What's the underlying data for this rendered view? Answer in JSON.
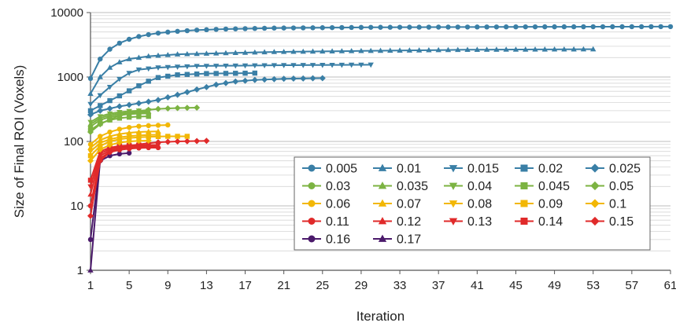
{
  "chart_data": {
    "type": "line",
    "xlabel": "Iteration",
    "ylabel": "Size of Final ROI (Voxels)",
    "yscale": "log",
    "ylim": [
      1,
      10000
    ],
    "xlim": [
      1,
      61
    ],
    "x_ticks": [
      1,
      5,
      9,
      13,
      17,
      21,
      25,
      29,
      33,
      37,
      41,
      45,
      49,
      53,
      57,
      61
    ],
    "y_ticks": [
      1,
      10,
      100,
      1000,
      10000
    ],
    "y_tick_labels": [
      "1",
      "10",
      "100",
      "1000",
      "10000"
    ],
    "grid": "horizontal minor gridlines on",
    "legend_position": "lower-right, inside plot, 5 columns",
    "series": [
      {
        "name": "0.005",
        "color": "#3a7fa6",
        "marker": "circle",
        "start": 1,
        "end": 61,
        "points": [
          [
            1,
            950
          ],
          [
            2,
            1900
          ],
          [
            3,
            2700
          ],
          [
            4,
            3350
          ],
          [
            5,
            3850
          ],
          [
            6,
            4250
          ],
          [
            7,
            4550
          ],
          [
            8,
            4800
          ],
          [
            9,
            4980
          ],
          [
            10,
            5120
          ],
          [
            12,
            5350
          ],
          [
            15,
            5550
          ],
          [
            20,
            5750
          ],
          [
            30,
            5900
          ],
          [
            45,
            6000
          ],
          [
            61,
            6050
          ]
        ]
      },
      {
        "name": "0.01",
        "color": "#3a7fa6",
        "marker": "triangle-up",
        "start": 1,
        "end": 53,
        "points": [
          [
            1,
            550
          ],
          [
            2,
            1000
          ],
          [
            3,
            1400
          ],
          [
            4,
            1700
          ],
          [
            5,
            1900
          ],
          [
            7,
            2100
          ],
          [
            10,
            2250
          ],
          [
            15,
            2350
          ],
          [
            20,
            2450
          ],
          [
            30,
            2550
          ],
          [
            40,
            2650
          ],
          [
            53,
            2700
          ]
        ]
      },
      {
        "name": "0.015",
        "color": "#3a7fa6",
        "marker": "triangle-down",
        "start": 1,
        "end": 30,
        "points": [
          [
            1,
            380
          ],
          [
            2,
            520
          ],
          [
            3,
            700
          ],
          [
            4,
            930
          ],
          [
            5,
            1150
          ],
          [
            6,
            1300
          ],
          [
            8,
            1400
          ],
          [
            12,
            1480
          ],
          [
            20,
            1520
          ],
          [
            30,
            1550
          ]
        ]
      },
      {
        "name": "0.02",
        "color": "#3a7fa6",
        "marker": "square",
        "start": 1,
        "end": 18,
        "points": [
          [
            1,
            300
          ],
          [
            2,
            360
          ],
          [
            3,
            430
          ],
          [
            4,
            510
          ],
          [
            5,
            610
          ],
          [
            6,
            730
          ],
          [
            7,
            860
          ],
          [
            8,
            980
          ],
          [
            10,
            1080
          ],
          [
            13,
            1130
          ],
          [
            18,
            1150
          ]
        ]
      },
      {
        "name": "0.025",
        "color": "#3a7fa6",
        "marker": "diamond",
        "start": 1,
        "end": 25,
        "points": [
          [
            1,
            260
          ],
          [
            2,
            300
          ],
          [
            4,
            350
          ],
          [
            6,
            390
          ],
          [
            8,
            440
          ],
          [
            10,
            530
          ],
          [
            12,
            640
          ],
          [
            14,
            760
          ],
          [
            16,
            850
          ],
          [
            18,
            900
          ],
          [
            21,
            940
          ],
          [
            25,
            960
          ]
        ]
      },
      {
        "name": "0.03",
        "color": "#7cb342",
        "marker": "circle",
        "start": 1,
        "end": 7,
        "points": [
          [
            1,
            170
          ],
          [
            2,
            215
          ],
          [
            3,
            240
          ],
          [
            4,
            255
          ],
          [
            5,
            265
          ],
          [
            6,
            270
          ],
          [
            7,
            272
          ]
        ]
      },
      {
        "name": "0.035",
        "color": "#7cb342",
        "marker": "triangle-up",
        "start": 1,
        "end": 7,
        "points": [
          [
            1,
            185
          ],
          [
            2,
            230
          ],
          [
            3,
            255
          ],
          [
            4,
            270
          ],
          [
            5,
            280
          ],
          [
            6,
            285
          ],
          [
            7,
            288
          ]
        ]
      },
      {
        "name": "0.04",
        "color": "#7cb342",
        "marker": "triangle-down",
        "start": 1,
        "end": 7,
        "points": [
          [
            1,
            200
          ],
          [
            2,
            245
          ],
          [
            3,
            270
          ],
          [
            4,
            285
          ],
          [
            5,
            295
          ],
          [
            6,
            300
          ],
          [
            7,
            302
          ]
        ]
      },
      {
        "name": "0.045",
        "color": "#7cb342",
        "marker": "square",
        "start": 1,
        "end": 7,
        "points": [
          [
            1,
            150
          ],
          [
            2,
            190
          ],
          [
            3,
            215
          ],
          [
            4,
            230
          ],
          [
            5,
            238
          ],
          [
            6,
            243
          ],
          [
            7,
            245
          ]
        ]
      },
      {
        "name": "0.05",
        "color": "#7cb342",
        "marker": "diamond",
        "start": 1,
        "end": 12,
        "points": [
          [
            1,
            140
          ],
          [
            2,
            185
          ],
          [
            3,
            220
          ],
          [
            4,
            250
          ],
          [
            5,
            275
          ],
          [
            6,
            295
          ],
          [
            7,
            310
          ],
          [
            8,
            320
          ],
          [
            10,
            330
          ],
          [
            12,
            335
          ]
        ]
      },
      {
        "name": "0.06",
        "color": "#f2b705",
        "marker": "circle",
        "start": 1,
        "end": 9,
        "points": [
          [
            1,
            90
          ],
          [
            2,
            120
          ],
          [
            3,
            140
          ],
          [
            4,
            155
          ],
          [
            5,
            165
          ],
          [
            6,
            172
          ],
          [
            7,
            176
          ],
          [
            8,
            178
          ],
          [
            9,
            180
          ]
        ]
      },
      {
        "name": "0.07",
        "color": "#f2b705",
        "marker": "triangle-up",
        "start": 1,
        "end": 8,
        "points": [
          [
            1,
            80
          ],
          [
            2,
            105
          ],
          [
            3,
            120
          ],
          [
            4,
            130
          ],
          [
            5,
            136
          ],
          [
            6,
            140
          ],
          [
            7,
            142
          ],
          [
            8,
            143
          ]
        ]
      },
      {
        "name": "0.08",
        "color": "#f2b705",
        "marker": "triangle-down",
        "start": 1,
        "end": 8,
        "points": [
          [
            1,
            70
          ],
          [
            2,
            95
          ],
          [
            3,
            108
          ],
          [
            4,
            116
          ],
          [
            5,
            121
          ],
          [
            6,
            124
          ],
          [
            7,
            126
          ],
          [
            8,
            127
          ]
        ]
      },
      {
        "name": "0.09",
        "color": "#f2b705",
        "marker": "square",
        "start": 1,
        "end": 11,
        "points": [
          [
            1,
            60
          ],
          [
            2,
            85
          ],
          [
            3,
            100
          ],
          [
            4,
            108
          ],
          [
            5,
            113
          ],
          [
            6,
            116
          ],
          [
            7,
            118
          ],
          [
            8,
            119
          ],
          [
            9,
            120
          ],
          [
            11,
            120
          ]
        ]
      },
      {
        "name": "0.1",
        "color": "#f2b705",
        "marker": "diamond",
        "start": 1,
        "end": 7,
        "points": [
          [
            1,
            50
          ],
          [
            2,
            75
          ],
          [
            3,
            88
          ],
          [
            4,
            96
          ],
          [
            5,
            100
          ],
          [
            6,
            102
          ],
          [
            7,
            103
          ]
        ]
      },
      {
        "name": "0.11",
        "color": "#e02a2a",
        "marker": "circle",
        "start": 1,
        "end": 8,
        "points": [
          [
            1,
            10
          ],
          [
            2,
            55
          ],
          [
            3,
            68
          ],
          [
            4,
            74
          ],
          [
            5,
            77
          ],
          [
            6,
            79
          ],
          [
            7,
            80
          ],
          [
            8,
            80
          ]
        ]
      },
      {
        "name": "0.12",
        "color": "#e02a2a",
        "marker": "triangle-up",
        "start": 1,
        "end": 8,
        "points": [
          [
            1,
            15
          ],
          [
            2,
            60
          ],
          [
            3,
            72
          ],
          [
            4,
            78
          ],
          [
            5,
            81
          ],
          [
            6,
            83
          ],
          [
            7,
            84
          ],
          [
            8,
            84
          ]
        ]
      },
      {
        "name": "0.13",
        "color": "#e02a2a",
        "marker": "triangle-down",
        "start": 1,
        "end": 8,
        "points": [
          [
            1,
            20
          ],
          [
            2,
            65
          ],
          [
            3,
            76
          ],
          [
            4,
            82
          ],
          [
            5,
            85
          ],
          [
            6,
            87
          ],
          [
            7,
            88
          ],
          [
            8,
            88
          ]
        ]
      },
      {
        "name": "0.14",
        "color": "#e02a2a",
        "marker": "square",
        "start": 1,
        "end": 6,
        "points": [
          [
            1,
            25
          ],
          [
            2,
            70
          ],
          [
            3,
            80
          ],
          [
            4,
            85
          ],
          [
            5,
            87
          ],
          [
            6,
            88
          ]
        ]
      },
      {
        "name": "0.15",
        "color": "#e02a2a",
        "marker": "diamond",
        "start": 1,
        "end": 13,
        "points": [
          [
            1,
            7
          ],
          [
            2,
            50
          ],
          [
            3,
            68
          ],
          [
            4,
            78
          ],
          [
            5,
            85
          ],
          [
            6,
            90
          ],
          [
            7,
            94
          ],
          [
            8,
            97
          ],
          [
            10,
            100
          ],
          [
            13,
            102
          ]
        ]
      },
      {
        "name": "0.16",
        "color": "#4b1a6b",
        "marker": "circle",
        "start": 1,
        "end": 5,
        "points": [
          [
            1,
            3
          ],
          [
            2,
            50
          ],
          [
            3,
            60
          ],
          [
            4,
            64
          ],
          [
            5,
            66
          ]
        ]
      },
      {
        "name": "0.17",
        "color": "#4b1a6b",
        "marker": "triangle-up",
        "start": 1,
        "end": 2,
        "points": [
          [
            1,
            1
          ],
          [
            2,
            52
          ]
        ]
      }
    ]
  }
}
